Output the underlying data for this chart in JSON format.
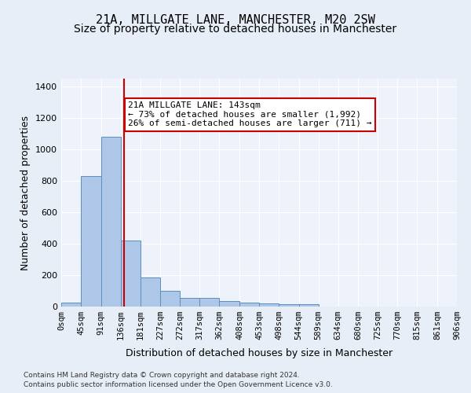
{
  "title1": "21A, MILLGATE LANE, MANCHESTER, M20 2SW",
  "title2": "Size of property relative to detached houses in Manchester",
  "xlabel": "Distribution of detached houses by size in Manchester",
  "ylabel": "Number of detached properties",
  "annotation_line1": "21A MILLGATE LANE: 143sqm",
  "annotation_line2": "← 73% of detached houses are smaller (1,992)",
  "annotation_line3": "26% of semi-detached houses are larger (711) →",
  "property_size": 143,
  "bin_edges": [
    0,
    45,
    91,
    136,
    181,
    227,
    272,
    317,
    362,
    408,
    453,
    498,
    544,
    589,
    634,
    680,
    725,
    770,
    815,
    861,
    906
  ],
  "bar_heights": [
    25,
    830,
    1080,
    420,
    185,
    100,
    55,
    55,
    35,
    25,
    20,
    15,
    15,
    0,
    0,
    0,
    0,
    0,
    0,
    0
  ],
  "bar_color": "#aec6e8",
  "bar_edge_color": "#5a8fc0",
  "vline_color": "#cc0000",
  "vline_x": 143,
  "ylim": [
    0,
    1450
  ],
  "yticks": [
    0,
    200,
    400,
    600,
    800,
    1000,
    1200,
    1400
  ],
  "background_color": "#e8eef8",
  "plot_bg_color": "#eef2fa",
  "footer1": "Contains HM Land Registry data © Crown copyright and database right 2024.",
  "footer2": "Contains public sector information licensed under the Open Government Licence v3.0.",
  "title1_fontsize": 11,
  "title2_fontsize": 10,
  "tick_label_fontsize": 7.5,
  "axis_label_fontsize": 9
}
